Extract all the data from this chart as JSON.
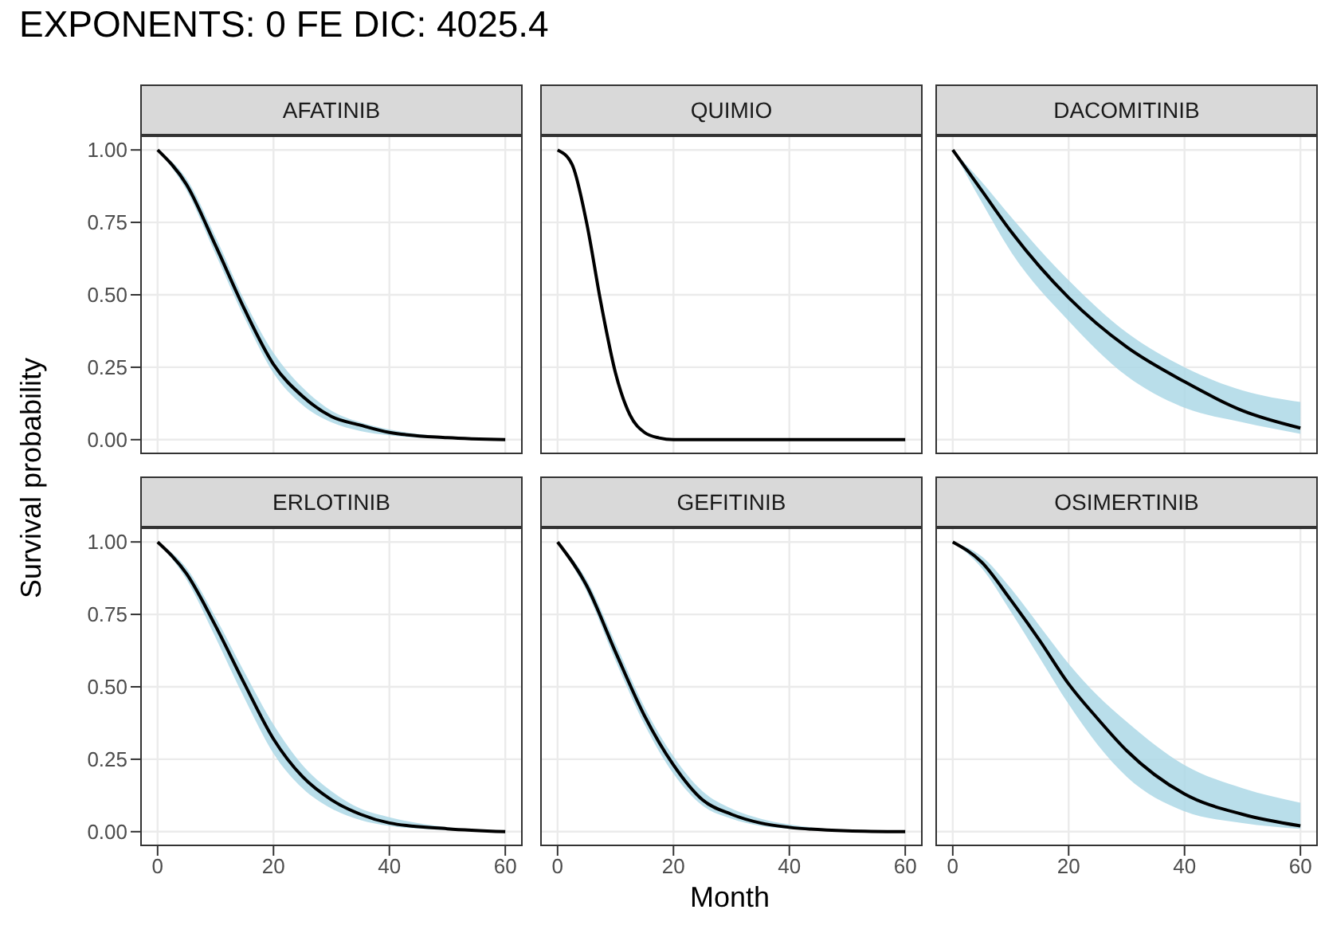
{
  "chart_data": [
    {
      "type": "line",
      "title": "AFATINIB",
      "annotations": [
        "EXPONENTS: 0 FE DIC: 4025.4"
      ],
      "ylabel": "Survival probability",
      "x": [
        0,
        5,
        10,
        15,
        20,
        25,
        30,
        35,
        40,
        50,
        60
      ],
      "xlim": [
        -3,
        63
      ],
      "ylim": [
        -0.05,
        1.05
      ],
      "xticks": [
        0,
        20,
        40,
        60
      ],
      "yticks": [
        {
          "value": 0,
          "label": "0.00"
        },
        {
          "value": 0.25,
          "label": "0.25"
        },
        {
          "value": 0.5,
          "label": "0.50"
        },
        {
          "value": 0.75,
          "label": "0.75"
        },
        {
          "value": 1,
          "label": "1.00"
        }
      ],
      "grid": true,
      "tick_labels": "y",
      "series": [
        {
          "color": "#000000",
          "values": [
            1,
            0.88,
            0.67,
            0.45,
            0.26,
            0.15,
            0.08,
            0.05,
            0.025,
            0.007,
            0
          ],
          "lower": [
            1,
            0.86,
            0.64,
            0.42,
            0.23,
            0.12,
            0.06,
            0.03,
            0.015,
            0.003,
            0
          ],
          "upper": [
            1,
            0.9,
            0.7,
            0.48,
            0.3,
            0.18,
            0.1,
            0.06,
            0.035,
            0.01,
            0.002
          ]
        }
      ]
    },
    {
      "type": "line",
      "title": "QUIMIO",
      "x": [
        0,
        2.5,
        5,
        7.5,
        10,
        12.5,
        15,
        17.5,
        20,
        30,
        40,
        50,
        60
      ],
      "xlim": [
        -3,
        63
      ],
      "ylim": [
        -0.05,
        1.05
      ],
      "xticks": [
        0,
        20,
        40,
        60
      ],
      "yticks": [
        0,
        0.25,
        0.5,
        0.75,
        1
      ],
      "grid": true,
      "tick_labels": false,
      "series": [
        {
          "color": "#000000",
          "values": [
            1,
            0.95,
            0.75,
            0.47,
            0.23,
            0.085,
            0.025,
            0.006,
            0,
            0,
            0,
            0,
            0
          ],
          "lower": [
            1,
            0.94,
            0.74,
            0.46,
            0.22,
            0.075,
            0.02,
            0.003,
            0,
            0,
            0,
            0,
            0
          ],
          "upper": [
            1,
            0.96,
            0.76,
            0.48,
            0.24,
            0.095,
            0.03,
            0.009,
            0.002,
            0,
            0,
            0,
            0
          ]
        }
      ]
    },
    {
      "type": "line",
      "title": "DACOMITINIB",
      "x": [
        0,
        5,
        10,
        20,
        30,
        40,
        50,
        60
      ],
      "xlim": [
        -3,
        63
      ],
      "ylim": [
        -0.05,
        1.05
      ],
      "xticks": [
        0,
        20,
        40,
        60
      ],
      "yticks": [
        0,
        0.25,
        0.5,
        0.75,
        1
      ],
      "grid": true,
      "tick_labels": false,
      "series": [
        {
          "color": "#000000",
          "values": [
            1,
            0.86,
            0.72,
            0.49,
            0.32,
            0.2,
            0.1,
            0.04
          ],
          "lower": [
            1,
            0.82,
            0.65,
            0.41,
            0.22,
            0.11,
            0.06,
            0.02
          ],
          "upper": [
            1,
            0.89,
            0.77,
            0.55,
            0.37,
            0.25,
            0.17,
            0.13
          ]
        }
      ]
    },
    {
      "type": "line",
      "title": "ERLOTINIB",
      "x": [
        0,
        5,
        10,
        15,
        20,
        25,
        30,
        35,
        40,
        50,
        60
      ],
      "xlim": [
        -3,
        63
      ],
      "ylim": [
        -0.05,
        1.05
      ],
      "xticks": [
        0,
        20,
        40,
        60
      ],
      "yticks": [
        {
          "value": 0,
          "label": "0.00"
        },
        {
          "value": 0.25,
          "label": "0.25"
        },
        {
          "value": 0.5,
          "label": "0.50"
        },
        {
          "value": 0.75,
          "label": "0.75"
        },
        {
          "value": 1,
          "label": "1.00"
        }
      ],
      "grid": true,
      "series": [
        {
          "color": "#000000",
          "values": [
            1,
            0.89,
            0.71,
            0.51,
            0.32,
            0.19,
            0.11,
            0.06,
            0.03,
            0.01,
            0
          ],
          "lower": [
            1,
            0.87,
            0.67,
            0.46,
            0.27,
            0.15,
            0.08,
            0.04,
            0.02,
            0.005,
            0
          ],
          "upper": [
            1,
            0.91,
            0.74,
            0.55,
            0.37,
            0.23,
            0.14,
            0.08,
            0.05,
            0.015,
            0.003
          ]
        }
      ]
    },
    {
      "type": "line",
      "title": "GEFITINIB",
      "xlabel": "Month",
      "x": [
        0,
        5,
        10,
        15,
        20,
        25,
        30,
        35,
        40,
        50,
        60
      ],
      "xlim": [
        -3,
        63
      ],
      "ylim": [
        -0.05,
        1.05
      ],
      "xticks": [
        0,
        20,
        40,
        60
      ],
      "yticks": [
        0,
        0.25,
        0.5,
        0.75,
        1
      ],
      "grid": true,
      "tick_labels": "x",
      "series": [
        {
          "color": "#000000",
          "values": [
            1,
            0.85,
            0.62,
            0.4,
            0.23,
            0.11,
            0.06,
            0.03,
            0.015,
            0.003,
            0
          ],
          "lower": [
            1,
            0.83,
            0.59,
            0.37,
            0.2,
            0.09,
            0.045,
            0.02,
            0.01,
            0.001,
            0
          ],
          "upper": [
            1,
            0.87,
            0.65,
            0.43,
            0.26,
            0.14,
            0.08,
            0.045,
            0.025,
            0.006,
            0.001
          ]
        }
      ]
    },
    {
      "type": "line",
      "title": "OSIMERTINIB",
      "x": [
        0,
        5,
        10,
        15,
        20,
        25,
        30,
        40,
        50,
        60
      ],
      "xlim": [
        -3,
        63
      ],
      "ylim": [
        -0.05,
        1.05
      ],
      "xticks": [
        0,
        20,
        40,
        60
      ],
      "yticks": [
        0,
        0.25,
        0.5,
        0.75,
        1
      ],
      "grid": true,
      "tick_labels": "x",
      "series": [
        {
          "color": "#000000",
          "values": [
            1,
            0.93,
            0.8,
            0.66,
            0.51,
            0.39,
            0.28,
            0.13,
            0.06,
            0.02
          ],
          "lower": [
            1,
            0.91,
            0.76,
            0.6,
            0.44,
            0.3,
            0.19,
            0.07,
            0.03,
            0.01
          ],
          "upper": [
            1,
            0.95,
            0.84,
            0.71,
            0.58,
            0.47,
            0.38,
            0.23,
            0.15,
            0.1
          ]
        }
      ]
    }
  ]
}
